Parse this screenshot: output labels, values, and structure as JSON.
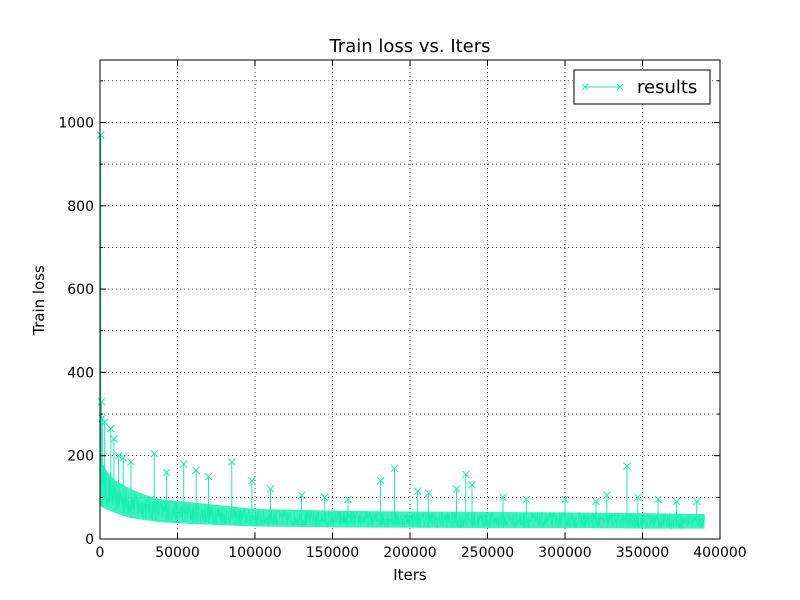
{
  "chart_data": {
    "type": "line",
    "title": "Train loss  vs. Iters",
    "xlabel": "Iters",
    "ylabel": "Train loss",
    "xlim": [
      0,
      400000
    ],
    "ylim": [
      0,
      1150
    ],
    "x_ticks": [
      0,
      50000,
      100000,
      150000,
      200000,
      250000,
      300000,
      350000,
      400000
    ],
    "x_tick_labels": [
      "0",
      "50000",
      "100000",
      "150000",
      "200000",
      "250000",
      "300000",
      "350000",
      "400000"
    ],
    "y_ticks": [
      0,
      200,
      400,
      600,
      800,
      1000
    ],
    "y_tick_labels": [
      "0",
      "200",
      "400",
      "600",
      "800",
      "1000"
    ],
    "grid": true,
    "legend_position": "top-right",
    "colors": {
      "series": "#19f0b0",
      "axes": "#000000",
      "grid": "#000000",
      "background": "#ffffff"
    },
    "series": [
      {
        "name": "results",
        "marker": "x",
        "x_range": [
          0,
          390000
        ],
        "envelope": {
          "x": [
            0,
            2000,
            5000,
            10000,
            20000,
            30000,
            40000,
            60000,
            80000,
            100000,
            150000,
            200000,
            250000,
            300000,
            350000,
            390000
          ],
          "lower": [
            80,
            75,
            70,
            62,
            50,
            45,
            40,
            36,
            33,
            30,
            28,
            27,
            26,
            26,
            25,
            25
          ],
          "upper": [
            200,
            180,
            160,
            140,
            120,
            105,
            95,
            88,
            80,
            72,
            68,
            66,
            65,
            64,
            62,
            60
          ]
        },
        "spikes": [
          [
            500,
            970
          ],
          [
            1000,
            330
          ],
          [
            1500,
            290
          ],
          [
            3000,
            280
          ],
          [
            7000,
            265
          ],
          [
            9000,
            240
          ],
          [
            12000,
            200
          ],
          [
            15000,
            195
          ],
          [
            20000,
            185
          ],
          [
            35000,
            205
          ],
          [
            43000,
            160
          ],
          [
            54000,
            180
          ],
          [
            62000,
            165
          ],
          [
            70000,
            150
          ],
          [
            85000,
            185
          ],
          [
            98000,
            140
          ],
          [
            110000,
            120
          ],
          [
            130000,
            105
          ],
          [
            145000,
            100
          ],
          [
            160000,
            95
          ],
          [
            181000,
            140
          ],
          [
            190000,
            170
          ],
          [
            205000,
            115
          ],
          [
            212000,
            110
          ],
          [
            230000,
            120
          ],
          [
            236000,
            155
          ],
          [
            240000,
            130
          ],
          [
            260000,
            100
          ],
          [
            275000,
            95
          ],
          [
            300000,
            95
          ],
          [
            320000,
            90
          ],
          [
            327000,
            105
          ],
          [
            340000,
            175
          ],
          [
            347000,
            100
          ],
          [
            360000,
            95
          ],
          [
            372000,
            90
          ],
          [
            385000,
            90
          ]
        ]
      }
    ]
  }
}
